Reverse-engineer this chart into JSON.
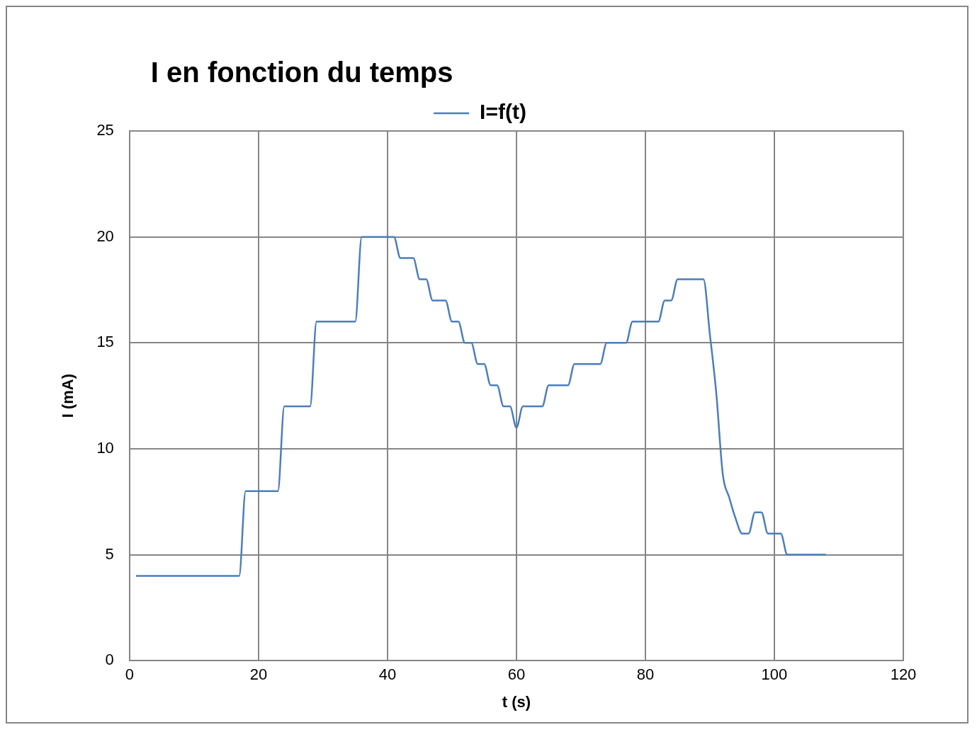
{
  "chart_data": {
    "type": "line",
    "title": "I en fonction du temps",
    "xlabel": "t (s)",
    "ylabel": "I (mA)",
    "x": [
      1,
      2,
      3,
      4,
      5,
      6,
      7,
      8,
      9,
      10,
      11,
      12,
      13,
      14,
      15,
      16,
      17,
      18,
      19,
      20,
      21,
      22,
      23,
      24,
      25,
      26,
      27,
      28,
      29,
      30,
      31,
      32,
      33,
      34,
      35,
      36,
      37,
      38,
      39,
      40,
      41,
      42,
      43,
      44,
      45,
      46,
      47,
      48,
      49,
      50,
      51,
      52,
      53,
      54,
      55,
      56,
      57,
      58,
      59,
      60,
      61,
      62,
      63,
      64,
      65,
      66,
      67,
      68,
      69,
      70,
      71,
      72,
      73,
      74,
      75,
      76,
      77,
      78,
      79,
      80,
      81,
      82,
      83,
      84,
      85,
      86,
      87,
      88,
      89,
      90,
      91,
      92,
      93,
      94,
      95,
      96,
      97,
      98,
      99,
      100,
      101,
      102,
      103,
      104,
      105,
      106,
      107,
      108
    ],
    "series": [
      {
        "name": "I=f(t)",
        "color": "#4a7ebb",
        "values": [
          4,
          4,
          4,
          4,
          4,
          4,
          4,
          4,
          4,
          4,
          4,
          4,
          4,
          4,
          4,
          4,
          4,
          8,
          8,
          8,
          8,
          8,
          8,
          12,
          12,
          12,
          12,
          12,
          16,
          16,
          16,
          16,
          16,
          16,
          16,
          20,
          20,
          20,
          20,
          20,
          20,
          19,
          19,
          19,
          18,
          18,
          17,
          17,
          17,
          16,
          16,
          15,
          15,
          14,
          14,
          13,
          13,
          12,
          12,
          11,
          12,
          12,
          12,
          12,
          13,
          13,
          13,
          13,
          14,
          14,
          14,
          14,
          14,
          15,
          15,
          15,
          15,
          16,
          16,
          16,
          16,
          16,
          17,
          17,
          18,
          18,
          18,
          18,
          18,
          15.4,
          12.6,
          8.8,
          7.7,
          6.7,
          6,
          6,
          7,
          7,
          6,
          6,
          6,
          5,
          5,
          5,
          5,
          5,
          5,
          5
        ]
      }
    ],
    "xlim": [
      0,
      120
    ],
    "xticks": [
      0,
      20,
      40,
      60,
      80,
      100,
      120
    ],
    "ylim": [
      0,
      25
    ],
    "yticks": [
      0,
      5,
      10,
      15,
      20,
      25
    ],
    "grid": true,
    "legend": "top right",
    "marker": "none",
    "line_style": "solid"
  }
}
